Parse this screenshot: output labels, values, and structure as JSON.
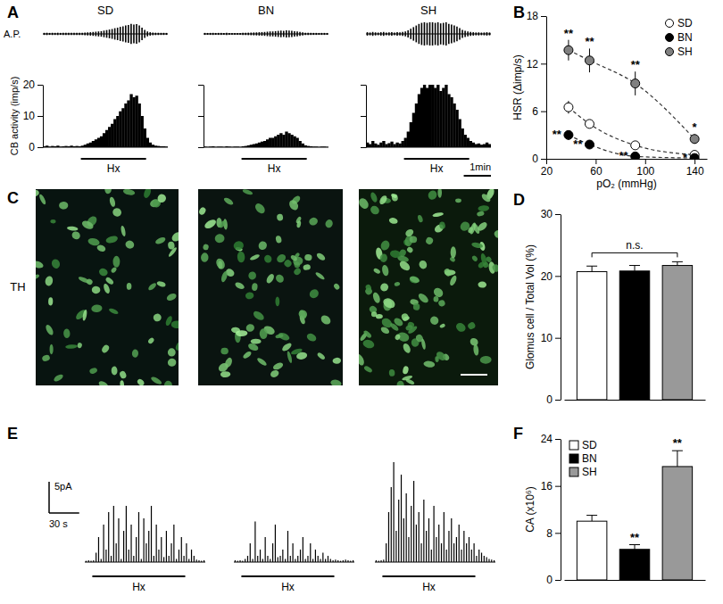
{
  "chart_data": [
    {
      "type": "trace",
      "title": "A",
      "column_titles": [
        "SD",
        "BN",
        "SH"
      ],
      "trace_label": "A.P.",
      "y_label": "CB activity (imp/s)",
      "ylim": [
        0,
        20
      ],
      "yticks": [
        0,
        10,
        20
      ],
      "stimulus_label": "Hx",
      "stimulus_bins": [
        14,
        38
      ],
      "scale_bar_x": {
        "label": "1min",
        "bins": 10
      },
      "series": [
        {
          "values": [
            0.3,
            0.5,
            0.2,
            0.4,
            0.3,
            0.5,
            0.2,
            0.3,
            0.4,
            0.3,
            0.5,
            0.3,
            0.4,
            0.3,
            0.5,
            0.8,
            1.2,
            1.5,
            2,
            2.5,
            3,
            3.5,
            4.5,
            5.5,
            6.5,
            7.5,
            9,
            10,
            11.5,
            12.5,
            14,
            15,
            17,
            16,
            16.5,
            14,
            10,
            6,
            3,
            1.5,
            0.8,
            0.5,
            0.4,
            0.3,
            0.3,
            0.2
          ]
        },
        {
          "values": [
            0.2,
            0.1,
            0.2,
            0.3,
            0.1,
            0.2,
            0.2,
            0.1,
            0.3,
            0.2,
            0.1,
            0.2,
            0.2,
            0.1,
            0.3,
            0.4,
            0.6,
            0.8,
            1,
            1.2,
            1.5,
            1.8,
            2,
            2.5,
            3,
            3,
            3.5,
            4,
            4.5,
            4,
            5,
            4.5,
            4,
            3.5,
            3,
            2,
            1.2,
            0.6,
            0.4,
            0.3,
            0.2,
            0.2,
            0.1,
            0.2,
            0.2,
            0.1
          ]
        },
        {
          "values": [
            1.5,
            1,
            2,
            1.2,
            0.8,
            1.5,
            2,
            1,
            1.3,
            1.8,
            1,
            1.5,
            1.2,
            2,
            3,
            5,
            8,
            11,
            14,
            17,
            19,
            20,
            19,
            20,
            20,
            19,
            20,
            18,
            19,
            20,
            17,
            16,
            14,
            12,
            9,
            6,
            4,
            3,
            2,
            1.5,
            1,
            1.2,
            0.8,
            1,
            1.5,
            1
          ]
        }
      ]
    },
    {
      "type": "scatter",
      "title": "B",
      "x_label": "pO₂ (mmHg)",
      "y_label": "HSR (Δimp/s)",
      "xlim": [
        20,
        150
      ],
      "xticks": [
        20,
        60,
        100,
        140
      ],
      "ylim": [
        0,
        18
      ],
      "yticks": [
        0,
        6,
        12,
        18
      ],
      "legend": "top-right",
      "series": [
        {
          "name": "SD",
          "color": "#ffffff",
          "marker": "circle",
          "line_style": "dashed",
          "x": [
            38,
            55,
            92,
            140
          ],
          "values": [
            6.5,
            4.4,
            1.7,
            0.5
          ],
          "errors": [
            0.8,
            0.4,
            0.3,
            0.2
          ]
        },
        {
          "name": "BN",
          "color": "#000000",
          "marker": "circle",
          "line_style": "dashed",
          "x": [
            38,
            55,
            92,
            140
          ],
          "values": [
            3.0,
            1.8,
            0.3,
            0.1
          ],
          "errors": [
            0.6,
            0.3,
            0.1,
            0.05
          ],
          "significance": [
            "**",
            "**",
            "**",
            "*"
          ]
        },
        {
          "name": "SH",
          "color": "#808080",
          "marker": "circle",
          "line_style": "dashed",
          "x": [
            38,
            55,
            92,
            140
          ],
          "values": [
            13.7,
            12.4,
            9.5,
            2.5
          ],
          "errors": [
            1.3,
            1.5,
            1.5,
            0.6
          ],
          "significance": [
            "**",
            "**",
            "**",
            "*"
          ]
        }
      ]
    },
    {
      "type": "image",
      "title": "C",
      "label": "TH"
    },
    {
      "type": "bar",
      "title": "D",
      "y_label": "Glomus cell / Total Vol (%)",
      "categories": [
        null,
        null,
        null
      ],
      "values": [
        20.7,
        20.8,
        21.7
      ],
      "errors": [
        0.9,
        0.9,
        0.6
      ],
      "colors": [
        "#ffffff",
        "#000000",
        "#999999"
      ],
      "ylim": [
        0,
        30
      ],
      "yticks": [
        0,
        10,
        20,
        30
      ],
      "annotation": "n.s."
    },
    {
      "type": "trace",
      "title": "E",
      "stimulus_label": "Hx",
      "stimulus_bins": [
        3,
        40
      ],
      "scale_bar_x": {
        "label": "30 s",
        "bins": 12
      },
      "scale_bar_y": {
        "label": "5pA",
        "value": 5
      },
      "series": [
        {
          "values": [
            0.2,
            0.3,
            0.2,
            0.3,
            1.5,
            4,
            0.5,
            6,
            2,
            8,
            1,
            9,
            3,
            7,
            0.5,
            5,
            9,
            2,
            6,
            1,
            4,
            8,
            0.5,
            7,
            3,
            5,
            9,
            1,
            6,
            2,
            4,
            0.8,
            5,
            1,
            3,
            6,
            0.5,
            2,
            4,
            1,
            3,
            0.5,
            2,
            1,
            0.4,
            0.3,
            0.2,
            0.3
          ]
        },
        {
          "values": [
            0.3,
            0.2,
            0.3,
            0.2,
            0.5,
            1,
            3,
            0.5,
            6.5,
            1,
            2,
            0.5,
            4,
            1,
            0.5,
            3,
            6,
            0.8,
            1,
            2,
            0.5,
            5,
            1,
            3,
            0.5,
            1,
            2,
            4,
            0.5,
            1,
            3,
            0.5,
            2,
            1,
            0.5,
            1.5,
            0.5,
            1,
            0.5,
            0.3,
            0.4,
            0.3,
            0.2,
            0.3,
            0.4,
            0.3,
            0.2,
            0.3
          ]
        },
        {
          "values": [
            0.3,
            0.2,
            0.3,
            0.4,
            3,
            8,
            12,
            16,
            5,
            10,
            14,
            7,
            11,
            4,
            9,
            13,
            6,
            8,
            3,
            10,
            5,
            7,
            2,
            9,
            4,
            6,
            3,
            8,
            2,
            5,
            7,
            3,
            4,
            6,
            2,
            5,
            3,
            4,
            2,
            3,
            1,
            2,
            1.5,
            1,
            0.8,
            0.5,
            0.4,
            0.3
          ]
        }
      ]
    },
    {
      "type": "bar",
      "title": "F",
      "y_label": "CA (x10⁶)",
      "categories": [
        null
      ],
      "legend": "top-left",
      "ylim": [
        0,
        24
      ],
      "yticks": [
        0,
        8,
        16,
        24
      ],
      "series": [
        {
          "name": "SD",
          "color": "#ffffff",
          "values": [
            10.0
          ],
          "errors": [
            1.0
          ],
          "significance": [
            null
          ]
        },
        {
          "name": "BN",
          "color": "#000000",
          "values": [
            5.2
          ],
          "errors": [
            0.8
          ],
          "significance": [
            "**"
          ]
        },
        {
          "name": "SH",
          "color": "#999999",
          "values": [
            19.3
          ],
          "errors": [
            2.7
          ],
          "significance": [
            "**"
          ]
        }
      ]
    }
  ]
}
